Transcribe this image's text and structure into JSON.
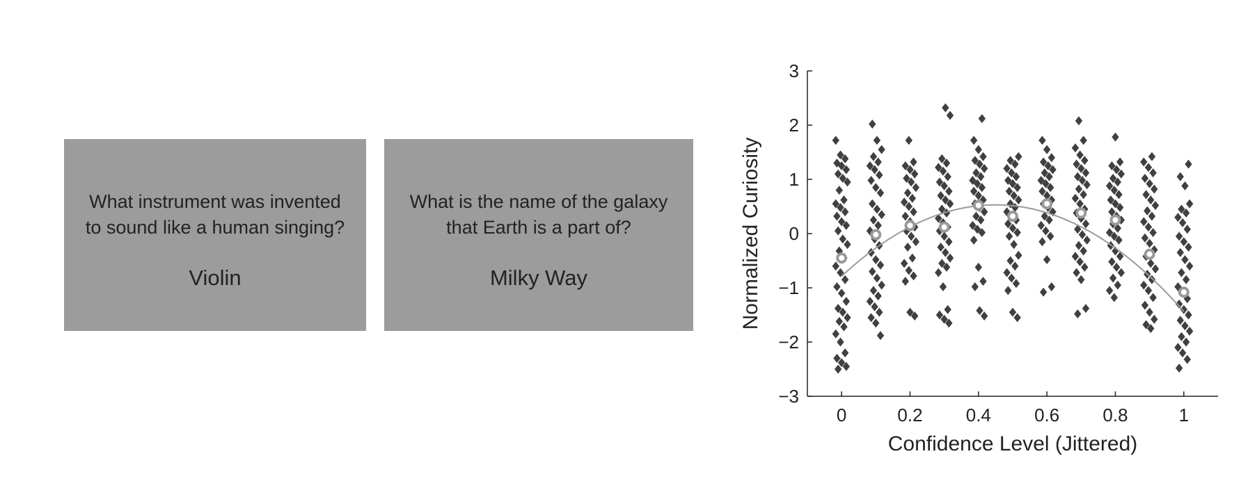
{
  "cards": [
    {
      "question_line1": "What instrument was invented",
      "question_line2": "to sound like a human singing?",
      "answer": "Violin"
    },
    {
      "question_line1": "What is the name of the galaxy",
      "question_line2": "that Earth is a part of?",
      "answer": "Milky Way"
    }
  ],
  "chart_data": {
    "type": "scatter",
    "xlabel": "Confidence Level (Jittered)",
    "ylabel": "Normalized Curiosity",
    "xlim": [
      -0.1,
      1.1
    ],
    "ylim": [
      -3,
      3
    ],
    "xticks": [
      0,
      0.2,
      0.4,
      0.6,
      0.8,
      1
    ],
    "xtick_labels": [
      "0",
      "0.2",
      "0.4",
      "0.6",
      "0.8",
      "1"
    ],
    "yticks": [
      -3,
      -2,
      -1,
      0,
      1,
      2,
      3
    ],
    "ytick_labels": [
      "−3",
      "−2",
      "−1",
      "0",
      "1",
      "2",
      "3"
    ],
    "grid": false,
    "colors": {
      "points": "#404040",
      "means": "#9a9a9a",
      "fit": "#9a9a9a"
    },
    "fit_curve": {
      "form": "quadratic",
      "vertex_x": 0.45,
      "vertex_y": 0.53,
      "coef": -6.5
    },
    "means": {
      "x": [
        0,
        0.1,
        0.2,
        0.3,
        0.4,
        0.5,
        0.6,
        0.7,
        0.8,
        0.9,
        1
      ],
      "y": [
        -0.45,
        -0.02,
        0.15,
        0.12,
        0.52,
        0.32,
        0.55,
        0.38,
        0.25,
        -0.38,
        -1.08
      ]
    },
    "groups": [
      {
        "x": 0,
        "y": [
          1.72,
          1.45,
          1.38,
          1.3,
          1.25,
          1.18,
          1.1,
          1.02,
          0.95,
          0.8,
          0.62,
          0.55,
          0.48,
          0.4,
          0.32,
          0.22,
          0.15,
          0.05,
          -0.1,
          -0.2,
          -0.32,
          -0.45,
          -0.6,
          -0.72,
          -0.85,
          -0.98,
          -1.1,
          -1.25,
          -1.38,
          -1.45,
          -1.55,
          -1.62,
          -1.72,
          -1.85,
          -2.0,
          -2.2,
          -2.3,
          -2.38,
          -2.45,
          -2.5
        ]
      },
      {
        "x": 0.1,
        "y": [
          2.02,
          1.72,
          1.55,
          1.42,
          1.32,
          1.25,
          1.18,
          1.08,
          0.98,
          0.85,
          0.75,
          0.55,
          0.45,
          0.35,
          0.25,
          0.15,
          0.05,
          -0.1,
          -0.22,
          -0.35,
          -0.48,
          -0.58,
          -0.7,
          -0.82,
          -0.95,
          -1.05,
          -1.15,
          -1.25,
          -1.35,
          -1.45,
          -1.55,
          -1.65,
          -1.88
        ]
      },
      {
        "x": 0.2,
        "y": [
          1.72,
          1.32,
          1.25,
          1.18,
          1.1,
          1.02,
          0.95,
          0.85,
          0.75,
          0.65,
          0.58,
          0.5,
          0.4,
          0.32,
          0.22,
          0.12,
          0.05,
          -0.05,
          -0.15,
          -0.25,
          -0.45,
          -0.55,
          -0.68,
          -0.78,
          -0.88,
          -1.45,
          -1.52
        ]
      },
      {
        "x": 0.3,
        "y": [
          2.32,
          2.18,
          1.38,
          1.3,
          1.22,
          1.15,
          1.05,
          0.95,
          0.88,
          0.78,
          0.7,
          0.62,
          0.55,
          0.45,
          0.38,
          0.28,
          0.2,
          0.12,
          0.05,
          -0.05,
          -0.15,
          -0.25,
          -0.35,
          -0.45,
          -0.55,
          -0.62,
          -0.72,
          -0.98,
          -1.4,
          -1.5,
          -1.58,
          -1.65
        ]
      },
      {
        "x": 0.4,
        "y": [
          2.12,
          1.72,
          1.55,
          1.42,
          1.35,
          1.28,
          1.2,
          1.12,
          1.05,
          0.98,
          0.92,
          0.85,
          0.78,
          0.7,
          0.62,
          0.55,
          0.48,
          0.4,
          0.32,
          0.25,
          0.15,
          0.08,
          0.02,
          -0.12,
          -0.62,
          -0.88,
          -0.98,
          -1.42,
          -1.52
        ]
      },
      {
        "x": 0.5,
        "y": [
          1.42,
          1.35,
          1.28,
          1.2,
          1.12,
          1.05,
          0.98,
          0.92,
          0.85,
          0.78,
          0.7,
          0.62,
          0.55,
          0.48,
          0.4,
          0.32,
          0.25,
          0.18,
          0.1,
          0.02,
          -0.05,
          -0.2,
          -0.4,
          -0.5,
          -0.6,
          -0.72,
          -0.82,
          -0.92,
          -1.05,
          -1.45,
          -1.55
        ]
      },
      {
        "x": 0.6,
        "y": [
          1.72,
          1.55,
          1.4,
          1.32,
          1.25,
          1.18,
          1.12,
          1.05,
          0.98,
          0.92,
          0.85,
          0.78,
          0.7,
          0.62,
          0.55,
          0.48,
          0.4,
          0.32,
          0.25,
          0.15,
          0.05,
          -0.05,
          -0.15,
          -0.48,
          -0.98,
          -1.08
        ]
      },
      {
        "x": 0.7,
        "y": [
          2.08,
          1.72,
          1.58,
          1.45,
          1.35,
          1.28,
          1.2,
          1.12,
          1.05,
          0.98,
          0.9,
          0.82,
          0.72,
          0.65,
          0.55,
          0.45,
          0.38,
          0.28,
          0.18,
          0.08,
          -0.02,
          -0.12,
          -0.22,
          -0.32,
          -0.42,
          -0.52,
          -0.62,
          -0.72,
          -0.85,
          -1.38,
          -1.48
        ]
      },
      {
        "x": 0.8,
        "y": [
          1.78,
          1.32,
          1.25,
          1.18,
          1.1,
          1.02,
          0.95,
          0.88,
          0.8,
          0.72,
          0.62,
          0.55,
          0.48,
          0.4,
          0.32,
          0.25,
          0.18,
          0.1,
          0.02,
          -0.05,
          -0.12,
          -0.22,
          -0.32,
          -0.42,
          -0.52,
          -0.62,
          -0.72,
          -0.82,
          -0.95,
          -1.05,
          -1.18
        ]
      },
      {
        "x": 0.9,
        "y": [
          1.42,
          1.32,
          1.22,
          1.12,
          1.02,
          0.92,
          0.82,
          0.72,
          0.62,
          0.52,
          0.42,
          0.32,
          0.22,
          0.12,
          0.02,
          -0.08,
          -0.18,
          -0.3,
          -0.42,
          -0.55,
          -0.65,
          -0.75,
          -0.85,
          -0.95,
          -1.05,
          -1.18,
          -1.32,
          -1.45,
          -1.58,
          -1.68,
          -1.75
        ]
      },
      {
        "x": 1,
        "y": [
          1.28,
          1.05,
          0.88,
          0.55,
          0.45,
          0.38,
          0.3,
          0.2,
          0.08,
          -0.05,
          -0.15,
          -0.25,
          -0.35,
          -0.48,
          -0.6,
          -0.72,
          -0.85,
          -0.98,
          -1.1,
          -1.2,
          -1.3,
          -1.4,
          -1.5,
          -1.6,
          -1.7,
          -1.8,
          -1.9,
          -2.0,
          -2.1,
          -2.2,
          -2.32,
          -2.48
        ]
      }
    ]
  }
}
